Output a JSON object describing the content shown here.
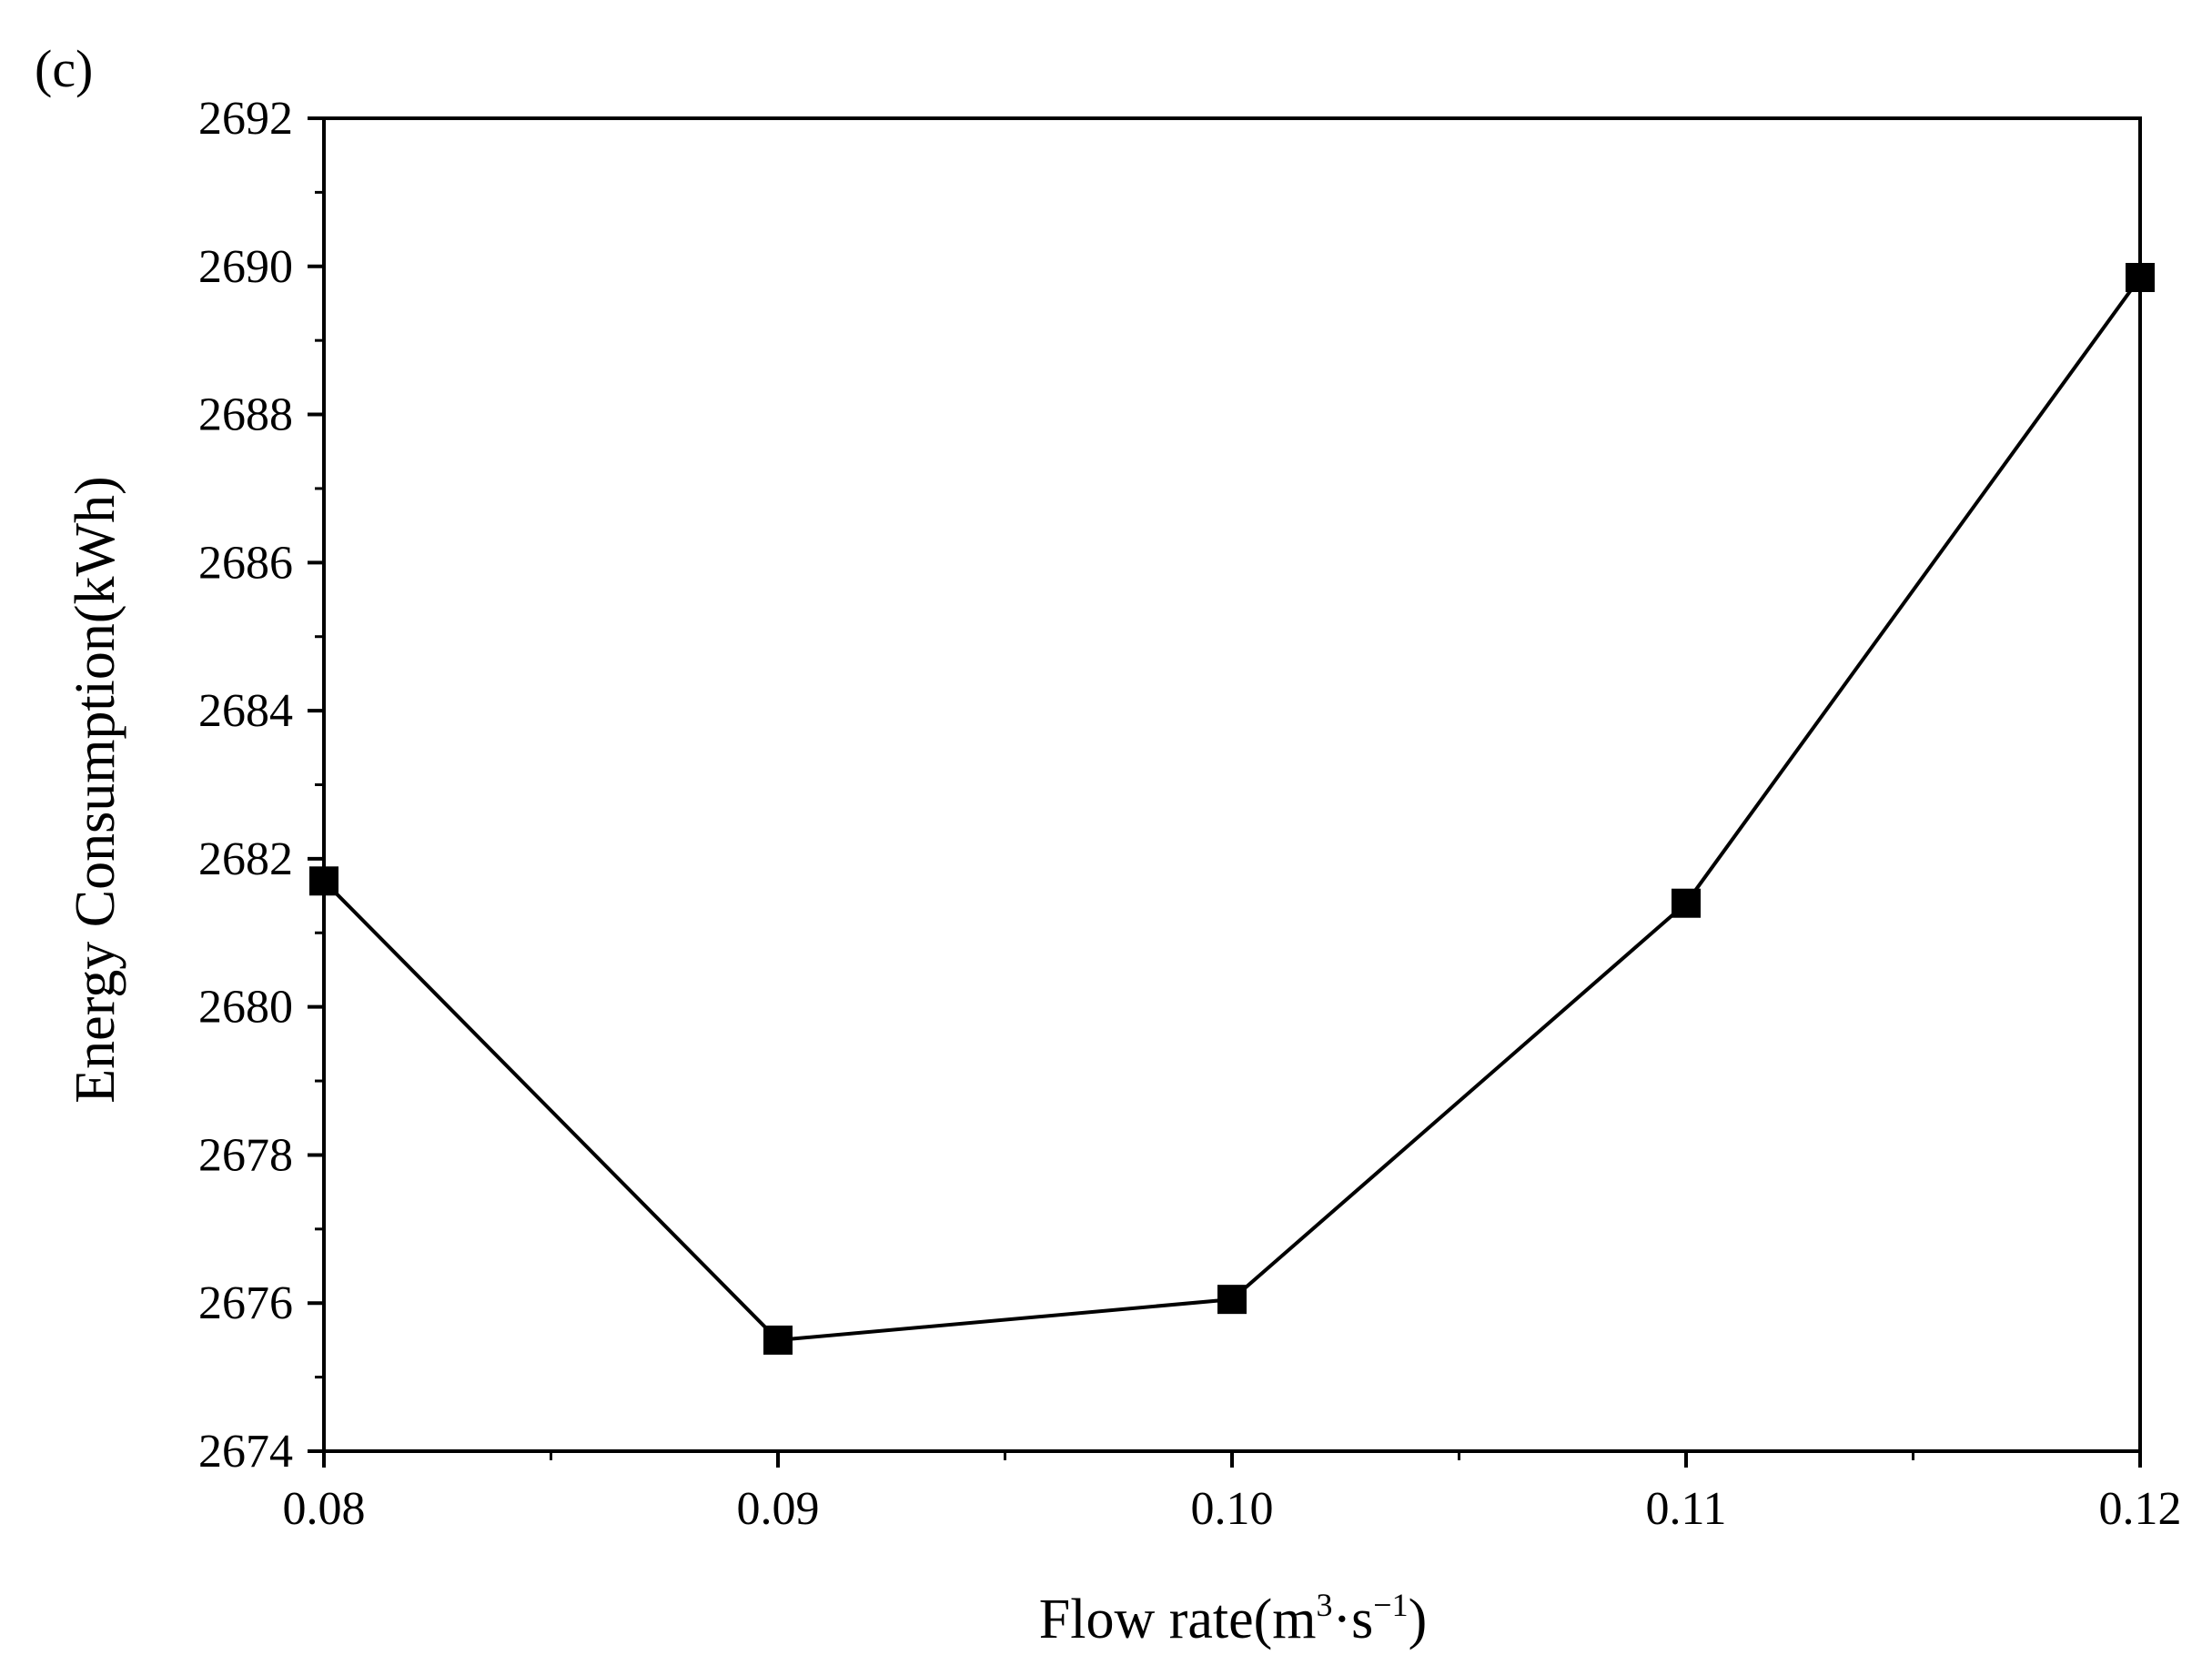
{
  "panel_label": "(c)",
  "chart_data": {
    "type": "line",
    "title": "",
    "xlabel": {
      "text": "Flow rate(m",
      "sup1": "3",
      "mid": "·s",
      "sup2": "−1",
      "end": ")"
    },
    "ylabel": "Energy Consumption(kWh)",
    "xlim": [
      0.08,
      0.12
    ],
    "ylim": [
      2674,
      2692
    ],
    "xticks": [
      0.08,
      0.09,
      0.1,
      0.11,
      0.12
    ],
    "xtick_labels": [
      "0.08",
      "0.09",
      "0.10",
      "0.11",
      "0.12"
    ],
    "yticks": [
      2674,
      2676,
      2678,
      2680,
      2682,
      2684,
      2686,
      2688,
      2690,
      2692
    ],
    "ytick_labels": [
      "2674",
      "2676",
      "2678",
      "2680",
      "2682",
      "2684",
      "2686",
      "2688",
      "2690",
      "2692"
    ],
    "x_minor_step": 0.005,
    "y_minor_step": 1,
    "grid": false,
    "legend": "none",
    "marker": "square",
    "color": "#000000",
    "x": [
      0.08,
      0.09,
      0.1,
      0.11,
      0.12
    ],
    "y": [
      2681.7,
      2675.5,
      2676.05,
      2681.4,
      2689.85
    ]
  }
}
